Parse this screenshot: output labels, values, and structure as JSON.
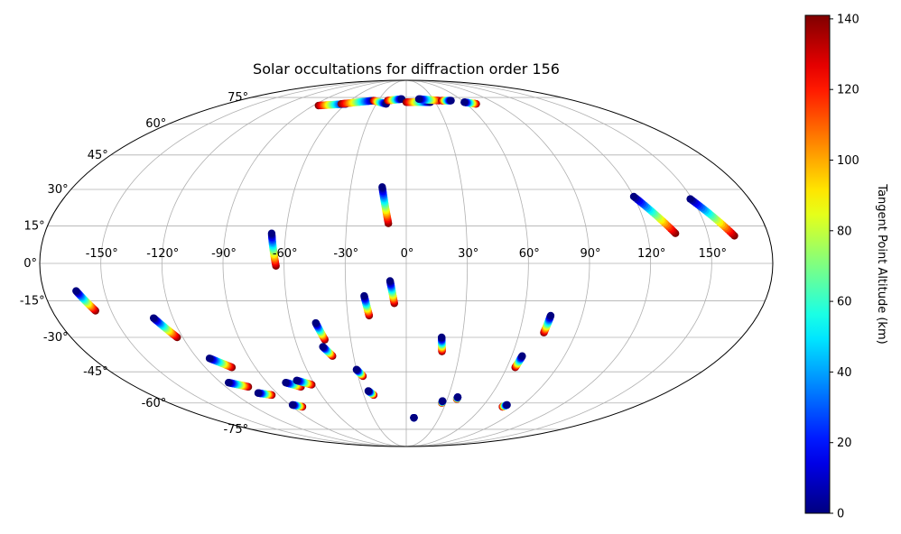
{
  "chart_data": {
    "type": "scatter",
    "projection": "mollweide",
    "title": "Solar occultations for diffraction order 156",
    "grid": true,
    "lon_ticks": [
      -150,
      -120,
      -90,
      -60,
      -30,
      0,
      30,
      60,
      90,
      120,
      150
    ],
    "lat_ticks": [
      -75,
      -60,
      -45,
      -30,
      -15,
      0,
      15,
      30,
      45,
      60,
      75
    ],
    "lon_tick_labels": [
      "-150°",
      "-120°",
      "-90°",
      "-60°",
      "-30°",
      "0°",
      "30°",
      "60°",
      "90°",
      "120°",
      "150°"
    ],
    "lat_tick_labels": [
      "-75°",
      "-60°",
      "-45°",
      "-30°",
      "-15°",
      "0°",
      "15°",
      "30°",
      "45°",
      "60°",
      "75°"
    ],
    "colorbar": {
      "label": "Tangent Point Altitude (km)",
      "colormap": "jet",
      "range": [
        0,
        141
      ],
      "ticks": [
        0,
        20,
        40,
        60,
        80,
        100,
        120,
        140
      ],
      "tick_labels": [
        "0",
        "20",
        "40",
        "60",
        "80",
        "100",
        "120",
        "140"
      ]
    },
    "tracks": [
      {
        "start": [
          -164,
          -11
        ],
        "end": [
          -158,
          -19
        ]
      },
      {
        "start": [
          -130,
          -22
        ],
        "end": [
          -123,
          -30
        ]
      },
      {
        "start": [
          -113,
          -39
        ],
        "end": [
          -104,
          -43
        ]
      },
      {
        "start": [
          -115,
          -50
        ],
        "end": [
          -105,
          -52
        ]
      },
      {
        "start": [
          -103,
          -55
        ],
        "end": [
          -95,
          -56
        ]
      },
      {
        "start": [
          -88,
          -61
        ],
        "end": [
          -82,
          -62
        ]
      },
      {
        "start": [
          -78,
          -50
        ],
        "end": [
          -70,
          -52
        ]
      },
      {
        "start": [
          -70,
          -49
        ],
        "end": [
          -62,
          -51
        ]
      },
      {
        "start": [
          -67,
          12
        ],
        "end": [
          -64,
          -1
        ]
      },
      {
        "start": [
          -47,
          -24
        ],
        "end": [
          -44,
          -31
        ]
      },
      {
        "start": [
          -46,
          -34
        ],
        "end": [
          -42,
          -38
        ]
      },
      {
        "start": [
          -30,
          -44
        ],
        "end": [
          -27,
          -47
        ]
      },
      {
        "start": [
          -26,
          -54
        ],
        "end": [
          -23,
          -56
        ]
      },
      {
        "start": [
          -21,
          -13
        ],
        "end": [
          -19,
          -21
        ]
      },
      {
        "start": [
          -13,
          31
        ],
        "end": [
          -9,
          16
        ]
      },
      {
        "start": [
          -8,
          -7
        ],
        "end": [
          -6,
          -16
        ]
      },
      {
        "start": [
          7,
          -68
        ],
        "end": [
          7,
          -68
        ]
      },
      {
        "start": [
          19,
          -30
        ],
        "end": [
          20,
          -36
        ]
      },
      {
        "start": [
          27,
          -59
        ],
        "end": [
          27,
          -60
        ]
      },
      {
        "start": [
          37,
          -57
        ],
        "end": [
          37,
          -58
        ]
      },
      {
        "start": [
          66,
          -38
        ],
        "end": [
          65,
          -43
        ]
      },
      {
        "start": [
          74,
          -21
        ],
        "end": [
          73,
          -28
        ]
      },
      {
        "start": [
          78,
          -61
        ],
        "end": [
          76,
          -62
        ]
      },
      {
        "start": [
          120,
          27
        ],
        "end": [
          134,
          12
        ]
      },
      {
        "start": [
          149,
          26
        ],
        "end": [
          163,
          11
        ]
      },
      {
        "start": [
          -60,
          71
        ],
        "end": [
          -85,
          70
        ]
      },
      {
        "start": [
          -35,
          73
        ],
        "end": [
          -65,
          71
        ]
      },
      {
        "start": [
          -20,
          71
        ],
        "end": [
          -35,
          73
        ]
      },
      {
        "start": [
          -5,
          74
        ],
        "end": [
          -20,
          73
        ]
      },
      {
        "start": [
          25,
          72
        ],
        "end": [
          0,
          72
        ]
      },
      {
        "start": [
          14,
          74
        ],
        "end": [
          35,
          73
        ]
      },
      {
        "start": [
          48,
          73
        ],
        "end": [
          38,
          73
        ]
      },
      {
        "start": [
          60,
          72
        ],
        "end": [
          70,
          71
        ]
      }
    ]
  }
}
